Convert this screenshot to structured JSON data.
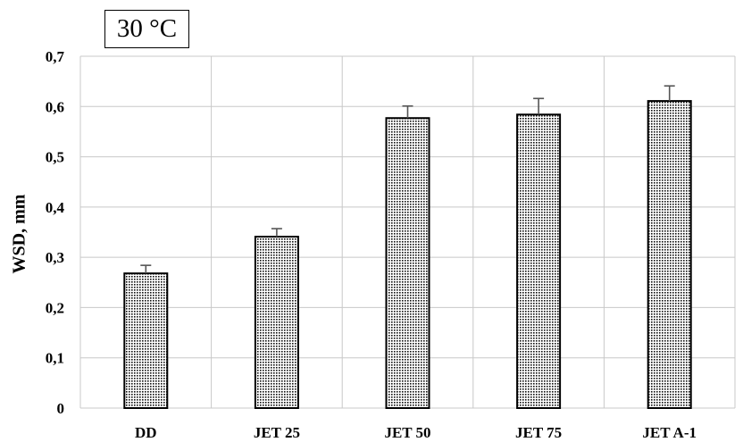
{
  "chart_data": {
    "type": "bar",
    "annotation": "30 °C",
    "ylabel": "WSD, mm",
    "xlabel": "",
    "categories": [
      "DD",
      "JET 25",
      "JET 50",
      "JET 75",
      "JET A-1"
    ],
    "values": [
      0.268,
      0.341,
      0.577,
      0.584,
      0.611
    ],
    "error_plus": [
      0.016,
      0.016,
      0.024,
      0.032,
      0.03
    ],
    "ylim": [
      0,
      0.7
    ],
    "yticks": [
      0,
      0.1,
      0.2,
      0.3,
      0.4,
      0.5,
      0.6,
      0.7
    ],
    "ytick_labels": [
      "0",
      "0,1",
      "0,2",
      "0,3",
      "0,4",
      "0,5",
      "0,6",
      "0,7"
    ],
    "grid": true,
    "bar_pattern": "dotted-hatch",
    "colors": {
      "bar_fill": "#ffffff",
      "bar_pattern_dot": "#111111",
      "bar_stroke": "#000000",
      "grid": "#c8c8c8",
      "error_bar": "#555555"
    }
  }
}
